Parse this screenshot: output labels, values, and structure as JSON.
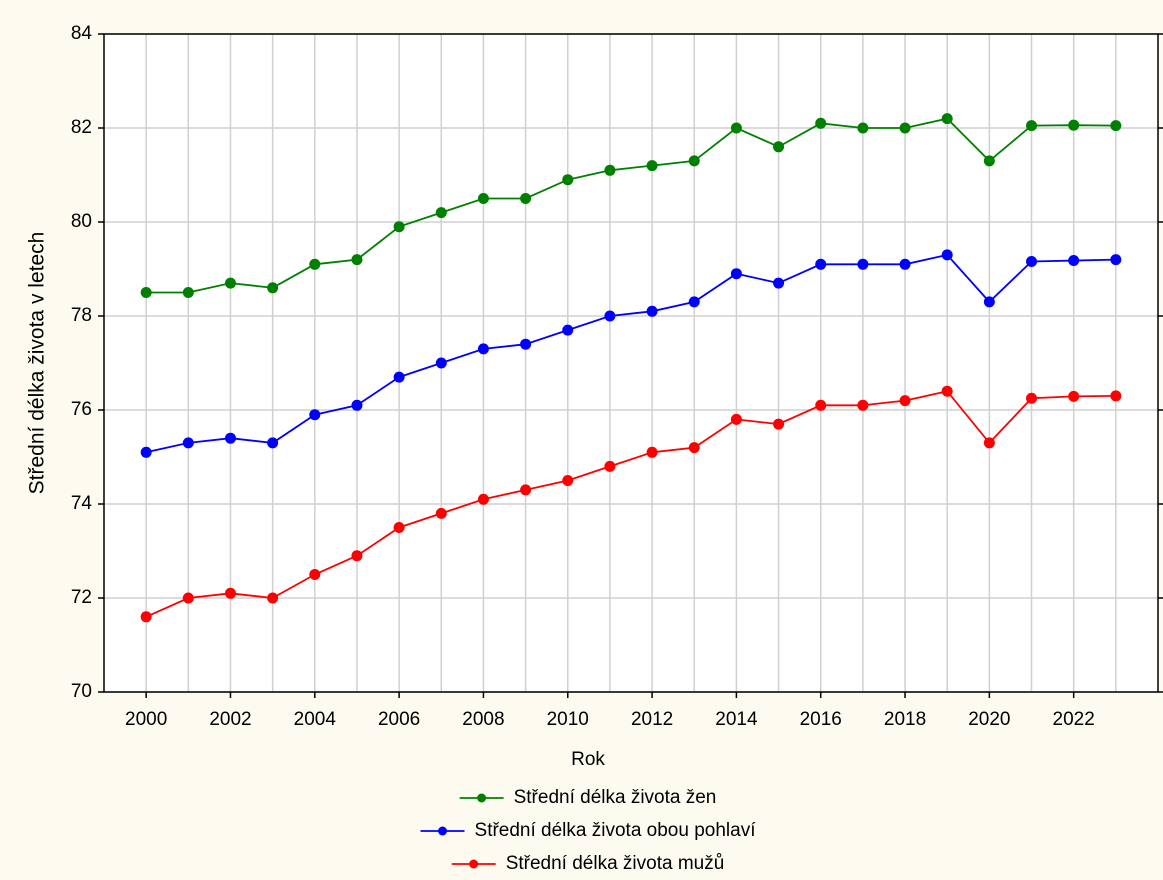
{
  "chart_data": {
    "type": "line",
    "x_label": "Rok",
    "y_label": "Střední délka života v letech",
    "x": [
      2000,
      2001,
      2002,
      2003,
      2004,
      2005,
      2006,
      2007,
      2008,
      2009,
      2010,
      2011,
      2012,
      2013,
      2014,
      2015,
      2016,
      2017,
      2018,
      2019,
      2020,
      2021,
      2022,
      2023
    ],
    "series": [
      {
        "name": "Střední délka života žen",
        "color": "#008000",
        "values": [
          78.5,
          78.5,
          78.7,
          78.6,
          79.1,
          79.2,
          79.9,
          80.2,
          80.5,
          80.5,
          80.9,
          81.1,
          81.2,
          81.3,
          82.0,
          81.6,
          82.1,
          82.0,
          82.0,
          82.2,
          81.3,
          82.05,
          82.06,
          82.05
        ]
      },
      {
        "name": "Střední délka života obou pohlaví",
        "color": "#0000ff",
        "values": [
          75.1,
          75.3,
          75.4,
          75.3,
          75.9,
          76.1,
          76.7,
          77.0,
          77.3,
          77.4,
          77.7,
          78.0,
          78.1,
          78.3,
          78.9,
          78.7,
          79.1,
          79.1,
          79.1,
          79.3,
          78.3,
          79.16,
          79.18,
          79.2
        ]
      },
      {
        "name": "Střední délka života mužů",
        "color": "#ff0000",
        "values": [
          71.6,
          72.0,
          72.1,
          72.0,
          72.5,
          72.9,
          73.5,
          73.8,
          74.1,
          74.3,
          74.5,
          74.8,
          75.1,
          75.2,
          75.8,
          75.7,
          76.1,
          76.1,
          76.2,
          76.4,
          75.3,
          76.25,
          76.29,
          76.3
        ]
      }
    ],
    "xlim": [
      1999,
      2024
    ],
    "xticks": [
      2000,
      2002,
      2004,
      2006,
      2008,
      2010,
      2012,
      2014,
      2016,
      2018,
      2020,
      2022
    ],
    "ylim": [
      70,
      84
    ],
    "yticks": [
      70,
      72,
      74,
      76,
      78,
      80,
      82,
      84
    ],
    "grid": true,
    "legend": "bottom"
  }
}
